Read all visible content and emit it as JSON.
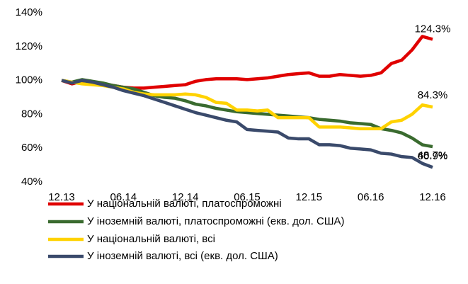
{
  "chart_data": {
    "type": "line",
    "categories": [
      "12.13",
      null,
      null,
      null,
      null,
      null,
      "06.14",
      null,
      null,
      null,
      null,
      null,
      "12.14",
      null,
      null,
      null,
      null,
      null,
      "06.15",
      null,
      null,
      null,
      null,
      null,
      "12.15",
      null,
      null,
      null,
      null,
      null,
      "06.16",
      null,
      null,
      null,
      null,
      null,
      "12.16"
    ],
    "series": [
      {
        "name": "У національній валюті, платоспроможні",
        "color": "#e00000",
        "values": [
          100,
          98,
          99.5,
          99,
          98,
          97,
          96,
          95.5,
          95.5,
          96,
          96.5,
          97,
          97.5,
          99.5,
          100.5,
          101,
          101,
          101,
          100.5,
          101,
          101.5,
          102.5,
          103.5,
          104,
          104.5,
          102.5,
          102.5,
          103.5,
          103,
          102.5,
          103,
          104.5,
          110,
          112,
          118,
          126,
          124.3
        ],
        "value_labels": [
          null,
          null,
          null,
          null,
          null,
          null,
          null,
          null,
          null,
          null,
          null,
          null,
          null,
          null,
          null,
          null,
          null,
          null,
          null,
          null,
          null,
          null,
          null,
          null,
          null,
          null,
          null,
          null,
          null,
          null,
          null,
          null,
          null,
          null,
          null,
          null,
          "124.3%"
        ]
      },
      {
        "name": "У іноземній валюті, платоспроможні (екв. дол. США)",
        "color": "#3a6b2f",
        "values": [
          100,
          99,
          100.5,
          99.5,
          98.5,
          97,
          96,
          95,
          93,
          91,
          90,
          89.5,
          88,
          86,
          85,
          83.5,
          82.5,
          81.5,
          81,
          80.5,
          80,
          79.5,
          79,
          78.5,
          78,
          77,
          76.5,
          76,
          75,
          74.5,
          74,
          71.5,
          70.5,
          69,
          66,
          62,
          60.9
        ],
        "value_labels": [
          null,
          null,
          null,
          null,
          null,
          null,
          null,
          null,
          null,
          null,
          null,
          null,
          null,
          null,
          null,
          null,
          null,
          null,
          null,
          null,
          null,
          null,
          null,
          null,
          null,
          null,
          null,
          null,
          null,
          null,
          null,
          null,
          null,
          null,
          null,
          null,
          "60.9%"
        ]
      },
      {
        "name": "У національній валюті, всі",
        "color": "#ffd200",
        "values": [
          100,
          99,
          98,
          97.5,
          97,
          96,
          95,
          93,
          92,
          91.5,
          91.5,
          91.5,
          92,
          91.5,
          90,
          87,
          86.5,
          82.5,
          82.5,
          82,
          82.5,
          78,
          78,
          78,
          78,
          72.5,
          72.5,
          72.5,
          72,
          71.5,
          71.5,
          71.5,
          75.5,
          76.5,
          80,
          85.5,
          84.3
        ],
        "value_labels": [
          null,
          null,
          null,
          null,
          null,
          null,
          null,
          null,
          null,
          null,
          null,
          null,
          null,
          null,
          null,
          null,
          null,
          null,
          null,
          null,
          null,
          null,
          null,
          null,
          null,
          null,
          null,
          null,
          null,
          null,
          null,
          null,
          null,
          null,
          null,
          null,
          "84.3%"
        ]
      },
      {
        "name": "У іноземній валюті, всі (екв. дол. США)",
        "color": "#3a4a6b",
        "values": [
          100,
          98.5,
          100,
          99,
          97.5,
          96,
          94,
          92.5,
          91,
          89,
          87,
          85,
          83,
          81,
          79.5,
          78,
          76.5,
          75.5,
          71,
          70.5,
          70,
          69.5,
          66,
          65.5,
          65.5,
          62,
          62,
          61.5,
          60,
          59.5,
          59,
          57,
          56.5,
          55,
          54.5,
          51,
          48.7
        ],
        "value_labels": [
          null,
          null,
          null,
          null,
          null,
          null,
          null,
          null,
          null,
          null,
          null,
          null,
          null,
          null,
          null,
          null,
          null,
          null,
          null,
          null,
          null,
          null,
          null,
          null,
          null,
          null,
          null,
          null,
          null,
          null,
          null,
          null,
          null,
          null,
          null,
          null,
          "48.7%"
        ]
      }
    ],
    "ylim": [
      40,
      140
    ],
    "yticks": [
      {
        "value": 40,
        "label": "40%"
      },
      {
        "value": 60,
        "label": "60%"
      },
      {
        "value": 80,
        "label": "80%"
      },
      {
        "value": 100,
        "label": "100%"
      },
      {
        "value": 120,
        "label": "120%"
      },
      {
        "value": 140,
        "label": "140%"
      }
    ],
    "grid": false
  }
}
